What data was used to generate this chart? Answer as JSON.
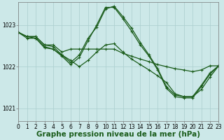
{
  "title": "Graphe pression niveau de la mer (hPa)",
  "bg_color": "#cce8e8",
  "grid_color": "#aacece",
  "line_color": "#1a5c1a",
  "xlim": [
    0,
    23
  ],
  "ylim": [
    1020.7,
    1023.55
  ],
  "yticks": [
    1021,
    1022,
    1023
  ],
  "xticks": [
    0,
    1,
    2,
    3,
    4,
    5,
    6,
    7,
    8,
    9,
    10,
    11,
    12,
    13,
    14,
    15,
    16,
    17,
    18,
    19,
    20,
    21,
    22,
    23
  ],
  "series": [
    {
      "x": [
        0,
        1,
        2,
        3,
        4,
        5,
        6,
        7,
        8,
        9,
        10,
        11,
        12,
        13,
        14,
        15,
        16,
        17,
        18,
        19,
        20,
        21,
        22,
        23
      ],
      "y": [
        1022.82,
        1022.72,
        1022.72,
        1022.52,
        1022.52,
        1022.35,
        1022.42,
        1022.42,
        1022.42,
        1022.42,
        1022.42,
        1022.42,
        1022.32,
        1022.25,
        1022.18,
        1022.12,
        1022.05,
        1022.0,
        1021.95,
        1021.92,
        1021.88,
        1021.92,
        1022.02,
        1022.02
      ]
    },
    {
      "x": [
        0,
        1,
        2,
        3,
        4,
        5,
        6,
        7,
        8,
        9,
        10,
        11,
        12,
        13,
        14,
        15,
        16,
        17,
        18,
        19,
        20,
        21,
        22,
        23
      ],
      "y": [
        1022.82,
        1022.72,
        1022.72,
        1022.52,
        1022.48,
        1022.28,
        1022.1,
        1022.28,
        1022.68,
        1022.95,
        1023.38,
        1023.45,
        1023.2,
        1022.92,
        1022.58,
        1022.28,
        1021.95,
        1021.52,
        1021.32,
        1021.28,
        1021.28,
        1021.55,
        1021.85,
        1022.02
      ]
    },
    {
      "x": [
        0,
        1,
        2,
        3,
        4,
        5,
        6,
        7,
        8,
        9,
        10,
        11,
        12,
        13,
        14,
        15,
        16,
        17,
        18,
        19,
        20,
        21,
        22,
        23
      ],
      "y": [
        1022.82,
        1022.72,
        1022.68,
        1022.48,
        1022.42,
        1022.25,
        1022.05,
        1022.22,
        1022.62,
        1023.0,
        1023.42,
        1023.42,
        1023.15,
        1022.85,
        1022.52,
        1022.25,
        1021.92,
        1021.48,
        1021.28,
        1021.25,
        1021.25,
        1021.52,
        1021.82,
        1022.02
      ]
    },
    {
      "x": [
        0,
        1,
        2,
        3,
        4,
        5,
        6,
        7,
        8,
        9,
        10,
        11,
        12,
        13,
        14,
        15,
        16,
        17,
        18,
        19,
        20,
        21,
        22,
        23
      ],
      "y": [
        1022.82,
        1022.68,
        1022.68,
        1022.45,
        1022.42,
        1022.28,
        1022.15,
        1022.0,
        1022.15,
        1022.35,
        1022.52,
        1022.55,
        1022.35,
        1022.18,
        1022.05,
        1021.92,
        1021.78,
        1021.62,
        1021.35,
        1021.28,
        1021.28,
        1021.45,
        1021.75,
        1022.02
      ]
    }
  ],
  "marker": "+",
  "markersize": 3.5,
  "linewidth": 0.9,
  "title_fontsize": 7.5,
  "tick_fontsize": 5.5
}
